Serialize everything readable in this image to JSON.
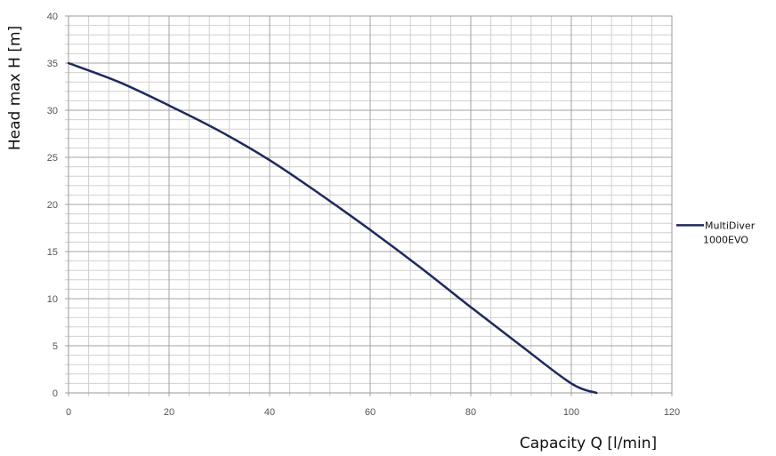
{
  "chart_data": {
    "type": "line",
    "title": "",
    "xlabel": "Capacity Q [l/min]",
    "ylabel": "Head max H [m]",
    "xlim": [
      0,
      120
    ],
    "ylim": [
      0,
      40
    ],
    "xticks": [
      "0",
      "20",
      "40",
      "60",
      "80",
      "100",
      "120"
    ],
    "yticks": [
      "0",
      "5",
      "10",
      "15",
      "20",
      "25",
      "30",
      "35",
      "40"
    ],
    "x_major_step": 20,
    "x_minor_step": 4,
    "y_major_step": 5,
    "y_minor_step": 1,
    "grid": true,
    "legend_position": "right",
    "series": [
      {
        "name": "MultiDiver 1000EVO",
        "color": "#1f2a5c",
        "x": [
          0,
          10,
          20,
          30,
          40,
          50,
          60,
          70,
          80,
          90,
          100,
          105
        ],
        "y": [
          35,
          33,
          30.5,
          27.8,
          24.7,
          21.1,
          17.3,
          13.3,
          9.1,
          5,
          1,
          0
        ]
      }
    ]
  }
}
